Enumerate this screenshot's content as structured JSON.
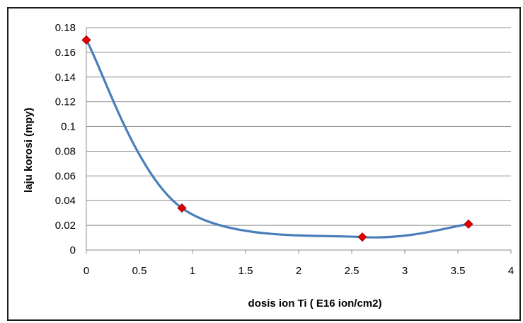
{
  "chart_data": {
    "type": "line",
    "smooth": true,
    "title": "",
    "xlabel": "dosis ion Ti ( E16 ion/cm2)",
    "ylabel": "laju korosi (mpy)",
    "xlim": [
      0,
      4
    ],
    "ylim": [
      0,
      0.18
    ],
    "xticks": [
      0,
      0.5,
      1,
      1.5,
      2,
      2.5,
      3,
      3.5,
      4
    ],
    "yticks": [
      0,
      0.02,
      0.04,
      0.06,
      0.08,
      0.1,
      0.12,
      0.14,
      0.16,
      0.18
    ],
    "xtick_labels": [
      "0",
      "0.5",
      "1",
      "1.5",
      "2",
      "2.5",
      "3",
      "3.5",
      "4"
    ],
    "ytick_labels": [
      "0",
      "0.02",
      "0.04",
      "0.06",
      "0.08",
      "0.1",
      "0.12",
      "0.14",
      "0.16",
      "0.18"
    ],
    "grid": "horizontal",
    "legend": "none",
    "series": [
      {
        "x": [
          0,
          0.9,
          2.6,
          3.6
        ],
        "y": [
          0.17,
          0.034,
          0.0105,
          0.021
        ],
        "line_color": "#4a7ebb",
        "marker": "diamond",
        "marker_color": "#e00000"
      }
    ]
  }
}
